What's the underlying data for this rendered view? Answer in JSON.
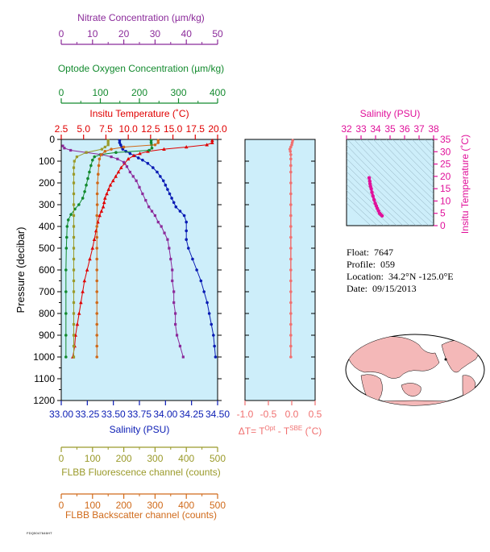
{
  "float_info": {
    "float_label": "Float:",
    "float_value": "7647",
    "profile_label": "Profile:",
    "profile_value": "059",
    "location_label": "Location:",
    "location_value": "34.2°N  -125.0°E",
    "date_label": "Date:",
    "date_value": "09/15/2013"
  },
  "footer_note": "FDQ5047646HT",
  "colors": {
    "salinity": "#0a1cb4",
    "temperature": "#e00000",
    "oxygen": "#138a2e",
    "nitrate": "#8b2a9a",
    "fluorescence": "#9a9a2a",
    "backscatter": "#d06a1a",
    "delta": "#f07070",
    "ts": "#e0109a",
    "panel_bg": "#cdeefa"
  },
  "chart_data": [
    {
      "type": "line",
      "id": "profile",
      "ylabel": "Pressure (decibar)",
      "ylim": [
        1200,
        0
      ],
      "yticks": [
        "0",
        "100",
        "200",
        "300",
        "400",
        "500",
        "600",
        "700",
        "800",
        "900",
        "1000",
        "1100",
        "1200"
      ],
      "axes": {
        "nitrate": {
          "label": "Nitrate Concentration (µm/kg)",
          "range": [
            0,
            50
          ],
          "ticks": [
            "0",
            "10",
            "20",
            "30",
            "40",
            "50"
          ]
        },
        "oxygen": {
          "label": "Optode Oxygen Concentration (µm/kg)",
          "range": [
            0,
            400
          ],
          "ticks": [
            "0",
            "100",
            "200",
            "300",
            "400"
          ]
        },
        "temperature": {
          "label": "Insitu Temperature (˚C)",
          "range": [
            2.5,
            20.0
          ],
          "ticks": [
            "2.5",
            "5.0",
            "7.5",
            "10.0",
            "12.5",
            "15.0",
            "17.5",
            "20.0"
          ]
        },
        "salinity": {
          "label": "Salinity (PSU)",
          "range": [
            33.0,
            34.5
          ],
          "ticks": [
            "33.00",
            "33.25",
            "33.50",
            "33.75",
            "34.00",
            "34.25",
            "34.50"
          ]
        },
        "fluorescence": {
          "label": "FLBB Fluorescence channel (counts)",
          "range": [
            0,
            500
          ],
          "ticks": [
            "0",
            "100",
            "200",
            "300",
            "400",
            "500"
          ]
        },
        "backscatter": {
          "label": "FLBB Backscatter channel (counts)",
          "range": [
            0,
            500
          ],
          "ticks": [
            "0",
            "100",
            "200",
            "300",
            "400",
            "500"
          ]
        }
      },
      "series": [
        {
          "key": "salinity",
          "points": [
            [
              33.56,
              5
            ],
            [
              33.56,
              15
            ],
            [
              33.57,
              25
            ],
            [
              33.58,
              35
            ],
            [
              33.59,
              45
            ],
            [
              33.62,
              55
            ],
            [
              33.66,
              65
            ],
            [
              33.7,
              75
            ],
            [
              33.74,
              85
            ],
            [
              33.78,
              95
            ],
            [
              33.83,
              110
            ],
            [
              33.88,
              130
            ],
            [
              33.92,
              150
            ],
            [
              33.95,
              170
            ],
            [
              33.98,
              190
            ],
            [
              34.0,
              210
            ],
            [
              34.02,
              230
            ],
            [
              34.04,
              250
            ],
            [
              34.06,
              270
            ],
            [
              34.08,
              290
            ],
            [
              34.1,
              310
            ],
            [
              34.14,
              330
            ],
            [
              34.18,
              350
            ],
            [
              34.2,
              380
            ],
            [
              34.2,
              420
            ],
            [
              34.2,
              460
            ],
            [
              34.22,
              500
            ],
            [
              34.26,
              550
            ],
            [
              34.3,
              600
            ],
            [
              34.34,
              650
            ],
            [
              34.37,
              700
            ],
            [
              34.4,
              750
            ],
            [
              34.42,
              800
            ],
            [
              34.44,
              850
            ],
            [
              34.46,
              900
            ],
            [
              34.47,
              950
            ],
            [
              34.48,
              1000
            ]
          ]
        },
        {
          "key": "temperature",
          "points": [
            [
              19.4,
              5
            ],
            [
              19.4,
              15
            ],
            [
              18.8,
              25
            ],
            [
              16.5,
              35
            ],
            [
              14.0,
              45
            ],
            [
              12.2,
              55
            ],
            [
              11.3,
              65
            ],
            [
              10.6,
              75
            ],
            [
              10.0,
              90
            ],
            [
              9.6,
              110
            ],
            [
              9.2,
              130
            ],
            [
              8.9,
              150
            ],
            [
              8.6,
              170
            ],
            [
              8.3,
              190
            ],
            [
              8.0,
              210
            ],
            [
              7.8,
              230
            ],
            [
              7.6,
              250
            ],
            [
              7.4,
              270
            ],
            [
              7.3,
              290
            ],
            [
              7.2,
              310
            ],
            [
              7.0,
              330
            ],
            [
              6.8,
              350
            ],
            [
              6.6,
              380
            ],
            [
              6.4,
              420
            ],
            [
              6.2,
              460
            ],
            [
              6.0,
              500
            ],
            [
              5.7,
              550
            ],
            [
              5.4,
              600
            ],
            [
              5.1,
              650
            ],
            [
              4.9,
              700
            ],
            [
              4.7,
              750
            ],
            [
              4.5,
              800
            ],
            [
              4.3,
              850
            ],
            [
              4.1,
              900
            ],
            [
              4.0,
              950
            ],
            [
              3.8,
              1000
            ]
          ]
        },
        {
          "key": "oxygen",
          "points": [
            [
              230,
              5
            ],
            [
              230,
              15
            ],
            [
              231,
              25
            ],
            [
              232,
              40
            ],
            [
              225,
              50
            ],
            [
              140,
              60
            ],
            [
              100,
              70
            ],
            [
              85,
              80
            ],
            [
              80,
              95
            ],
            [
              76,
              120
            ],
            [
              72,
              150
            ],
            [
              68,
              180
            ],
            [
              64,
              210
            ],
            [
              60,
              240
            ],
            [
              55,
              270
            ],
            [
              45,
              300
            ],
            [
              35,
              320
            ],
            [
              25,
              345
            ],
            [
              18,
              370
            ],
            [
              15,
              400
            ],
            [
              14,
              450
            ],
            [
              13,
              500
            ],
            [
              12,
              600
            ],
            [
              12,
              700
            ],
            [
              12,
              800
            ],
            [
              12,
              900
            ],
            [
              12,
              1000
            ]
          ]
        },
        {
          "key": "nitrate",
          "points": [
            [
              0.5,
              30
            ],
            [
              1,
              40
            ],
            [
              3,
              50
            ],
            [
              8,
              60
            ],
            [
              13,
              70
            ],
            [
              16,
              80
            ],
            [
              18,
              90
            ],
            [
              20,
              105
            ],
            [
              21,
              125
            ],
            [
              22,
              150
            ],
            [
              23,
              170
            ],
            [
              24,
              190
            ],
            [
              25,
              220
            ],
            [
              26,
              250
            ],
            [
              27,
              280
            ],
            [
              28,
              310
            ],
            [
              29,
              330
            ],
            [
              30,
              350
            ],
            [
              31,
              380
            ],
            [
              32,
              400
            ],
            [
              33,
              430
            ],
            [
              34,
              460
            ],
            [
              34.5,
              500
            ],
            [
              35,
              550
            ],
            [
              35.5,
              600
            ],
            [
              35.5,
              650
            ],
            [
              36,
              700
            ],
            [
              36,
              750
            ],
            [
              36.5,
              800
            ],
            [
              36.5,
              850
            ],
            [
              37,
              900
            ],
            [
              38,
              950
            ],
            [
              39,
              1000
            ]
          ]
        },
        {
          "key": "fluorescence",
          "points": [
            [
              150,
              5
            ],
            [
              150,
              15
            ],
            [
              150,
              25
            ],
            [
              140,
              35
            ],
            [
              130,
              45
            ],
            [
              80,
              60
            ],
            [
              50,
              80
            ],
            [
              42,
              100
            ],
            [
              40,
              130
            ],
            [
              40,
              160
            ],
            [
              40,
              200
            ],
            [
              40,
              250
            ],
            [
              40,
              300
            ],
            [
              40,
              350
            ],
            [
              40,
              400
            ],
            [
              40,
              450
            ],
            [
              40,
              500
            ],
            [
              40,
              550
            ],
            [
              40,
              600
            ],
            [
              40,
              650
            ],
            [
              40,
              700
            ],
            [
              40,
              750
            ],
            [
              40,
              800
            ],
            [
              40,
              850
            ],
            [
              40,
              900
            ],
            [
              40,
              950
            ],
            [
              40,
              1000
            ]
          ]
        },
        {
          "key": "backscatter",
          "points": [
            [
              310,
              5
            ],
            [
              310,
              15
            ],
            [
              300,
              25
            ],
            [
              200,
              35
            ],
            [
              160,
              45
            ],
            [
              140,
              55
            ],
            [
              128,
              70
            ],
            [
              122,
              90
            ],
            [
              120,
              120
            ],
            [
              118,
              160
            ],
            [
              116,
              200
            ],
            [
              115,
              250
            ],
            [
              115,
              300
            ],
            [
              114,
              350
            ],
            [
              114,
              400
            ],
            [
              114,
              450
            ],
            [
              114,
              500
            ],
            [
              114,
              550
            ],
            [
              114,
              600
            ],
            [
              114,
              650
            ],
            [
              114,
              700
            ],
            [
              114,
              750
            ],
            [
              114,
              800
            ],
            [
              114,
              850
            ],
            [
              114,
              900
            ],
            [
              114,
              950
            ],
            [
              114,
              1000
            ]
          ]
        }
      ]
    },
    {
      "type": "line",
      "id": "delta_t",
      "xlabel_main": "ΔT= T",
      "xlabel_sup1": "Opt",
      "xlabel_mid": " - T",
      "xlabel_sup2": "SBE",
      "xlabel_unit": " (˚C)",
      "xlim": [
        -1.0,
        0.5
      ],
      "ylim": [
        1200,
        0
      ],
      "xticks": [
        "-1.0",
        "-0.5",
        "0.0",
        "0.5"
      ],
      "points": [
        [
          0.02,
          5
        ],
        [
          0.01,
          15
        ],
        [
          0.0,
          25
        ],
        [
          -0.02,
          35
        ],
        [
          -0.04,
          45
        ],
        [
          -0.03,
          55
        ],
        [
          -0.02,
          70
        ],
        [
          -0.02,
          90
        ],
        [
          -0.02,
          120
        ],
        [
          -0.02,
          150
        ],
        [
          -0.02,
          200
        ],
        [
          -0.02,
          250
        ],
        [
          -0.02,
          300
        ],
        [
          -0.02,
          350
        ],
        [
          -0.02,
          400
        ],
        [
          -0.02,
          450
        ],
        [
          -0.02,
          500
        ],
        [
          -0.02,
          550
        ],
        [
          -0.02,
          600
        ],
        [
          -0.02,
          650
        ],
        [
          -0.02,
          700
        ],
        [
          -0.02,
          750
        ],
        [
          -0.02,
          800
        ],
        [
          -0.02,
          850
        ],
        [
          -0.02,
          900
        ],
        [
          -0.02,
          950
        ],
        [
          -0.02,
          1000
        ]
      ]
    },
    {
      "type": "scatter",
      "id": "ts_diagram",
      "xlabel": "Salinity (PSU)",
      "ylabel": "Insitu Temperature (˚C)",
      "xlim": [
        32,
        38
      ],
      "ylim": [
        0,
        35
      ],
      "xticks": [
        "32",
        "33",
        "34",
        "35",
        "36",
        "37",
        "38"
      ],
      "yticks": [
        "0",
        "5",
        "10",
        "15",
        "20",
        "25",
        "30",
        "35"
      ],
      "points": [
        [
          33.56,
          19.4
        ],
        [
          33.6,
          18.0
        ],
        [
          33.62,
          17.0
        ],
        [
          33.65,
          16.0
        ],
        [
          33.7,
          15.0
        ],
        [
          33.75,
          13.5
        ],
        [
          33.82,
          12.0
        ],
        [
          33.9,
          10.5
        ],
        [
          33.98,
          9.0
        ],
        [
          34.05,
          8.0
        ],
        [
          34.12,
          7.0
        ],
        [
          34.2,
          6.0
        ],
        [
          34.28,
          5.0
        ],
        [
          34.36,
          4.5
        ],
        [
          34.45,
          4.0
        ]
      ]
    }
  ]
}
